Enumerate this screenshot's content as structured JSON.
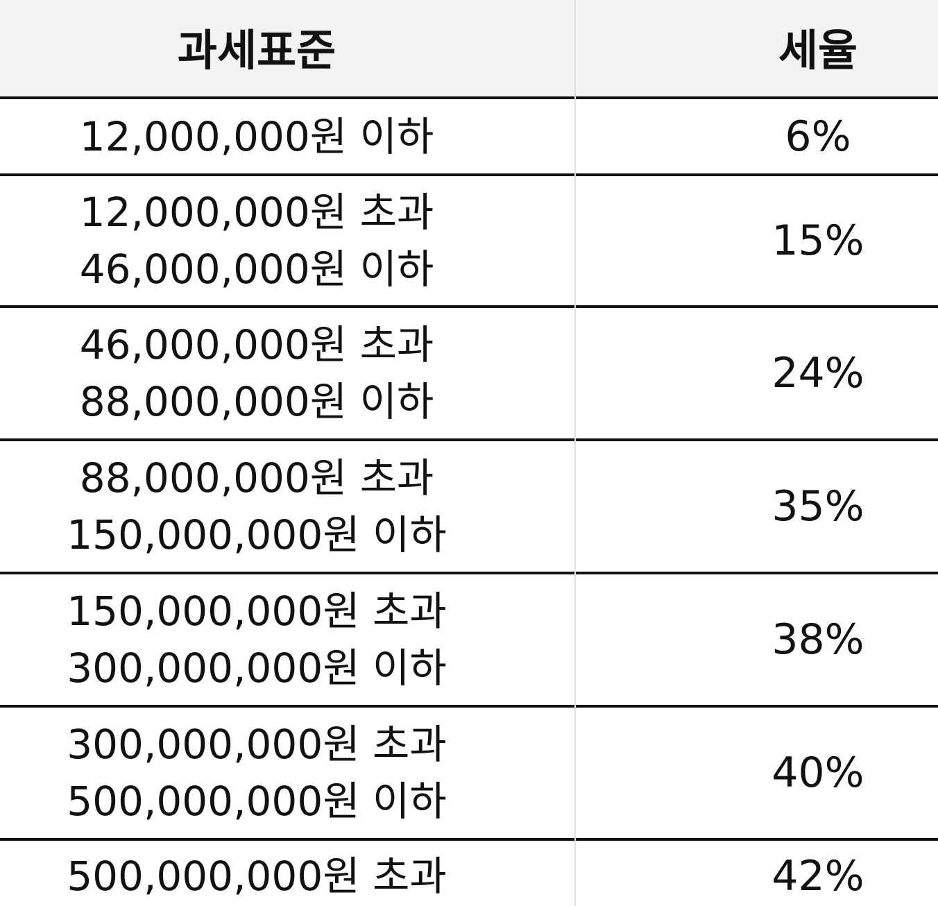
{
  "table": {
    "headers": [
      "과세표준",
      "세율"
    ],
    "rows": [
      {
        "base": [
          "12,000,000원 이하"
        ],
        "rate": "6%"
      },
      {
        "base": [
          "12,000,000원 초과",
          "46,000,000원 이하"
        ],
        "rate": "15%"
      },
      {
        "base": [
          "46,000,000원 초과",
          "88,000,000원 이하"
        ],
        "rate": "24%"
      },
      {
        "base": [
          "88,000,000원 초과",
          "150,000,000원 이하"
        ],
        "rate": "35%"
      },
      {
        "base": [
          "150,000,000원 초과",
          "300,000,000원 이하"
        ],
        "rate": "38%"
      },
      {
        "base": [
          "300,000,000원 초과",
          "500,000,000원 이하"
        ],
        "rate": "40%"
      },
      {
        "base": [
          "500,000,000원 초과"
        ],
        "rate": "42%"
      }
    ]
  }
}
